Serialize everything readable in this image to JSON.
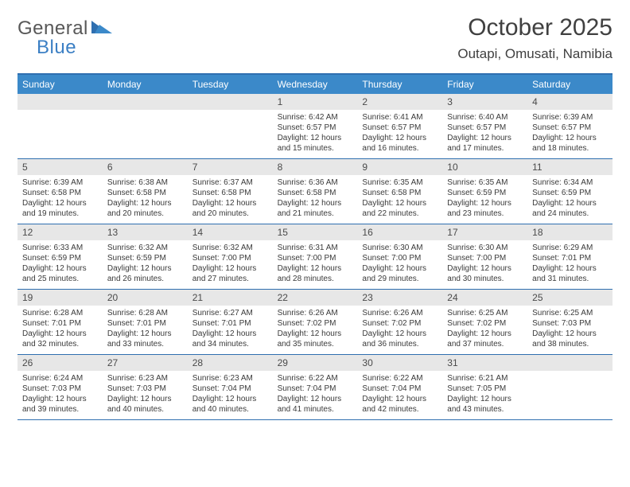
{
  "logo": {
    "text1": "General",
    "text2": "Blue"
  },
  "title": "October 2025",
  "location": "Outapi, Omusati, Namibia",
  "colors": {
    "header_bg": "#3b89c9",
    "border": "#2f6fb0",
    "daynum_bg": "#e7e7e7",
    "text": "#3a3a3a",
    "logo_blue": "#3b7fc4"
  },
  "weekdays": [
    "Sunday",
    "Monday",
    "Tuesday",
    "Wednesday",
    "Thursday",
    "Friday",
    "Saturday"
  ],
  "weeks": [
    [
      {
        "n": "",
        "sr": "",
        "ss": "",
        "dl": ""
      },
      {
        "n": "",
        "sr": "",
        "ss": "",
        "dl": ""
      },
      {
        "n": "",
        "sr": "",
        "ss": "",
        "dl": ""
      },
      {
        "n": "1",
        "sr": "6:42 AM",
        "ss": "6:57 PM",
        "dl": "12 hours and 15 minutes."
      },
      {
        "n": "2",
        "sr": "6:41 AM",
        "ss": "6:57 PM",
        "dl": "12 hours and 16 minutes."
      },
      {
        "n": "3",
        "sr": "6:40 AM",
        "ss": "6:57 PM",
        "dl": "12 hours and 17 minutes."
      },
      {
        "n": "4",
        "sr": "6:39 AM",
        "ss": "6:57 PM",
        "dl": "12 hours and 18 minutes."
      }
    ],
    [
      {
        "n": "5",
        "sr": "6:39 AM",
        "ss": "6:58 PM",
        "dl": "12 hours and 19 minutes."
      },
      {
        "n": "6",
        "sr": "6:38 AM",
        "ss": "6:58 PM",
        "dl": "12 hours and 20 minutes."
      },
      {
        "n": "7",
        "sr": "6:37 AM",
        "ss": "6:58 PM",
        "dl": "12 hours and 20 minutes."
      },
      {
        "n": "8",
        "sr": "6:36 AM",
        "ss": "6:58 PM",
        "dl": "12 hours and 21 minutes."
      },
      {
        "n": "9",
        "sr": "6:35 AM",
        "ss": "6:58 PM",
        "dl": "12 hours and 22 minutes."
      },
      {
        "n": "10",
        "sr": "6:35 AM",
        "ss": "6:59 PM",
        "dl": "12 hours and 23 minutes."
      },
      {
        "n": "11",
        "sr": "6:34 AM",
        "ss": "6:59 PM",
        "dl": "12 hours and 24 minutes."
      }
    ],
    [
      {
        "n": "12",
        "sr": "6:33 AM",
        "ss": "6:59 PM",
        "dl": "12 hours and 25 minutes."
      },
      {
        "n": "13",
        "sr": "6:32 AM",
        "ss": "6:59 PM",
        "dl": "12 hours and 26 minutes."
      },
      {
        "n": "14",
        "sr": "6:32 AM",
        "ss": "7:00 PM",
        "dl": "12 hours and 27 minutes."
      },
      {
        "n": "15",
        "sr": "6:31 AM",
        "ss": "7:00 PM",
        "dl": "12 hours and 28 minutes."
      },
      {
        "n": "16",
        "sr": "6:30 AM",
        "ss": "7:00 PM",
        "dl": "12 hours and 29 minutes."
      },
      {
        "n": "17",
        "sr": "6:30 AM",
        "ss": "7:00 PM",
        "dl": "12 hours and 30 minutes."
      },
      {
        "n": "18",
        "sr": "6:29 AM",
        "ss": "7:01 PM",
        "dl": "12 hours and 31 minutes."
      }
    ],
    [
      {
        "n": "19",
        "sr": "6:28 AM",
        "ss": "7:01 PM",
        "dl": "12 hours and 32 minutes."
      },
      {
        "n": "20",
        "sr": "6:28 AM",
        "ss": "7:01 PM",
        "dl": "12 hours and 33 minutes."
      },
      {
        "n": "21",
        "sr": "6:27 AM",
        "ss": "7:01 PM",
        "dl": "12 hours and 34 minutes."
      },
      {
        "n": "22",
        "sr": "6:26 AM",
        "ss": "7:02 PM",
        "dl": "12 hours and 35 minutes."
      },
      {
        "n": "23",
        "sr": "6:26 AM",
        "ss": "7:02 PM",
        "dl": "12 hours and 36 minutes."
      },
      {
        "n": "24",
        "sr": "6:25 AM",
        "ss": "7:02 PM",
        "dl": "12 hours and 37 minutes."
      },
      {
        "n": "25",
        "sr": "6:25 AM",
        "ss": "7:03 PM",
        "dl": "12 hours and 38 minutes."
      }
    ],
    [
      {
        "n": "26",
        "sr": "6:24 AM",
        "ss": "7:03 PM",
        "dl": "12 hours and 39 minutes."
      },
      {
        "n": "27",
        "sr": "6:23 AM",
        "ss": "7:03 PM",
        "dl": "12 hours and 40 minutes."
      },
      {
        "n": "28",
        "sr": "6:23 AM",
        "ss": "7:04 PM",
        "dl": "12 hours and 40 minutes."
      },
      {
        "n": "29",
        "sr": "6:22 AM",
        "ss": "7:04 PM",
        "dl": "12 hours and 41 minutes."
      },
      {
        "n": "30",
        "sr": "6:22 AM",
        "ss": "7:04 PM",
        "dl": "12 hours and 42 minutes."
      },
      {
        "n": "31",
        "sr": "6:21 AM",
        "ss": "7:05 PM",
        "dl": "12 hours and 43 minutes."
      },
      {
        "n": "",
        "sr": "",
        "ss": "",
        "dl": ""
      }
    ]
  ]
}
